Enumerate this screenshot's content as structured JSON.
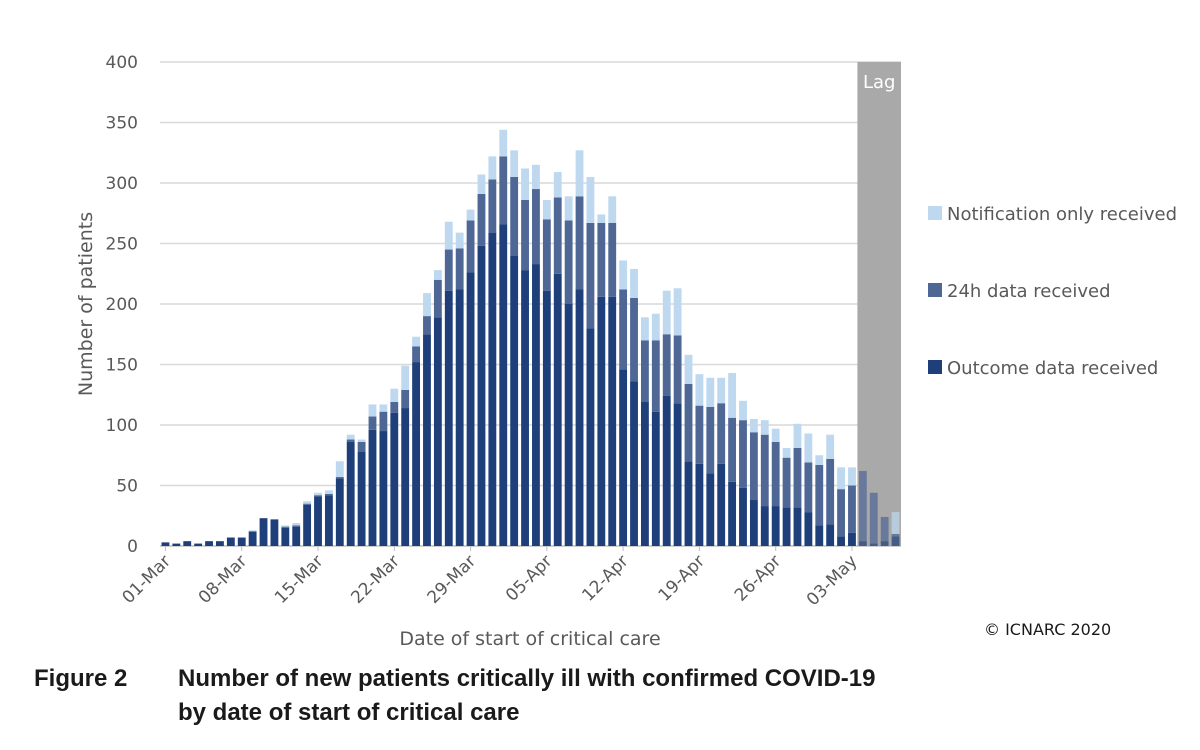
{
  "chart_data": {
    "type": "bar",
    "stacked": true,
    "xlabel": "Date of start of critical care",
    "ylabel": "Number of patients",
    "ylim": [
      0,
      400
    ],
    "yticks": [
      0,
      50,
      100,
      150,
      200,
      250,
      300,
      350,
      400
    ],
    "grid": "horizontal",
    "legend_position": "right",
    "x_tick_labels": [
      "01-Mar",
      "08-Mar",
      "15-Mar",
      "22-Mar",
      "29-Mar",
      "05-Apr",
      "12-Apr",
      "19-Apr",
      "26-Apr",
      "03-May"
    ],
    "categories": [
      "01-Mar",
      "02-Mar",
      "03-Mar",
      "04-Mar",
      "05-Mar",
      "06-Mar",
      "07-Mar",
      "08-Mar",
      "09-Mar",
      "10-Mar",
      "11-Mar",
      "12-Mar",
      "13-Mar",
      "14-Mar",
      "15-Mar",
      "16-Mar",
      "17-Mar",
      "18-Mar",
      "19-Mar",
      "20-Mar",
      "21-Mar",
      "22-Mar",
      "23-Mar",
      "24-Mar",
      "25-Mar",
      "26-Mar",
      "27-Mar",
      "28-Mar",
      "29-Mar",
      "30-Mar",
      "31-Mar",
      "01-Apr",
      "02-Apr",
      "03-Apr",
      "04-Apr",
      "05-Apr",
      "06-Apr",
      "07-Apr",
      "08-Apr",
      "09-Apr",
      "10-Apr",
      "11-Apr",
      "12-Apr",
      "13-Apr",
      "14-Apr",
      "15-Apr",
      "16-Apr",
      "17-Apr",
      "18-Apr",
      "19-Apr",
      "20-Apr",
      "21-Apr",
      "22-Apr",
      "23-Apr",
      "24-Apr",
      "25-Apr",
      "26-Apr",
      "27-Apr",
      "28-Apr",
      "29-Apr",
      "30-Apr",
      "01-May",
      "02-May",
      "03-May",
      "04-May",
      "05-May",
      "06-May",
      "07-May"
    ],
    "series": [
      {
        "name": "Outcome data received",
        "color": "#1f3f7a",
        "values": [
          3,
          2,
          4,
          2,
          4,
          4,
          7,
          7,
          12,
          23,
          22,
          15,
          16,
          34,
          41,
          42,
          56,
          86,
          78,
          96,
          95,
          110,
          114,
          152,
          175,
          189,
          211,
          212,
          226,
          248,
          259,
          266,
          240,
          228,
          233,
          211,
          225,
          200,
          212,
          180,
          206,
          206,
          146,
          136,
          119,
          111,
          124,
          118,
          70,
          68,
          60,
          68,
          53,
          48,
          38,
          33,
          33,
          32,
          32,
          28,
          17,
          18,
          8,
          11,
          4,
          2,
          4,
          8
        ]
      },
      {
        "name": "24h data received",
        "color": "#4f6795",
        "values": [
          0,
          0,
          0,
          0,
          0,
          0,
          0,
          0,
          0,
          0,
          0,
          1,
          1,
          1,
          1,
          1,
          1,
          2,
          8,
          11,
          16,
          9,
          15,
          13,
          15,
          31,
          34,
          34,
          43,
          43,
          44,
          56,
          65,
          58,
          62,
          59,
          63,
          69,
          77,
          87,
          61,
          61,
          66,
          69,
          51,
          59,
          51,
          56,
          64,
          48,
          55,
          50,
          53,
          56,
          56,
          59,
          53,
          41,
          49,
          41,
          50,
          54,
          39,
          39,
          58,
          42,
          20,
          2
        ]
      },
      {
        "name": "Notification only received",
        "color": "#bed8ef",
        "values": [
          0,
          0,
          0,
          0,
          0,
          0,
          0,
          0,
          1,
          0,
          0,
          1,
          2,
          2,
          2,
          3,
          13,
          4,
          2,
          10,
          6,
          11,
          20,
          8,
          19,
          8,
          23,
          13,
          9,
          16,
          19,
          22,
          22,
          26,
          20,
          16,
          21,
          20,
          38,
          38,
          7,
          22,
          24,
          24,
          19,
          22,
          36,
          39,
          24,
          26,
          24,
          21,
          37,
          16,
          11,
          12,
          11,
          8,
          20,
          24,
          8,
          20,
          18,
          15,
          0,
          0,
          0,
          18
        ]
      }
    ],
    "shaded_region": {
      "label": "Lag",
      "from": "04-May",
      "to": "07-May",
      "color": "#a9a9a9"
    }
  },
  "copyright": "© ICNARC 2020",
  "caption": {
    "label": "Figure 2",
    "line1": "Number of new patients critically ill with confirmed COVID-19",
    "line2": "by date of start of critical care"
  }
}
